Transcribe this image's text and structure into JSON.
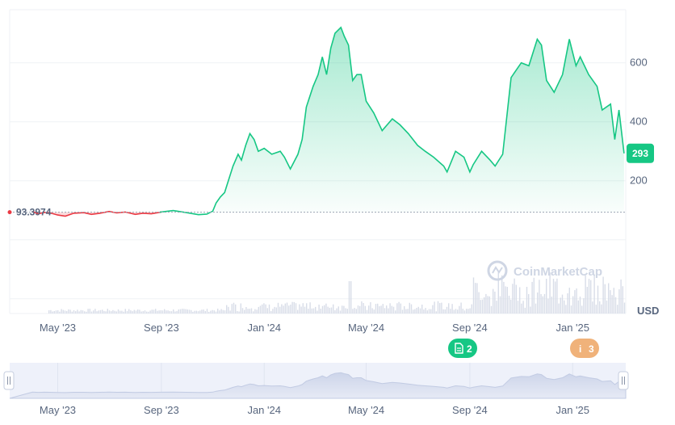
{
  "chart_data": {
    "type": "area",
    "currency_label": "USD",
    "baseline_value": 93.3974,
    "baseline_label": "93.3974",
    "current_price_label": "293",
    "y_ticks": [
      "200",
      "400",
      "600"
    ],
    "y_tick_values": [
      200,
      400,
      600
    ],
    "ylim": [
      -250,
      780
    ],
    "x_tick_labels": [
      "May '23",
      "Sep '23",
      "Jan '24",
      "May '24",
      "Sep '24",
      "Jan '25"
    ],
    "x_tick_dates": [
      "2023-05-01",
      "2023-09-01",
      "2024-01-01",
      "2024-05-01",
      "2024-09-01",
      "2025-01-01"
    ],
    "x_range": [
      "2023-03-05",
      "2025-03-05"
    ],
    "series": [
      {
        "x": [
          "2023-04-01",
          "2023-04-08",
          "2023-04-15",
          "2023-04-22",
          "2023-05-01",
          "2023-05-10",
          "2023-05-20",
          "2023-06-01",
          "2023-06-10",
          "2023-06-20",
          "2023-07-01",
          "2023-07-10",
          "2023-07-20",
          "2023-08-01",
          "2023-08-10",
          "2023-08-20",
          "2023-09-01",
          "2023-09-15",
          "2023-10-01",
          "2023-10-15",
          "2023-10-25",
          "2023-11-01",
          "2023-11-05",
          "2023-11-10",
          "2023-11-15",
          "2023-11-20",
          "2023-11-25",
          "2023-12-01",
          "2023-12-05",
          "2023-12-10",
          "2023-12-15",
          "2023-12-20",
          "2023-12-25",
          "2024-01-01",
          "2024-01-10",
          "2024-01-20",
          "2024-01-25",
          "2024-02-01",
          "2024-02-10",
          "2024-02-15",
          "2024-02-20",
          "2024-02-28",
          "2024-03-05",
          "2024-03-10",
          "2024-03-15",
          "2024-03-20",
          "2024-03-25",
          "2024-04-01",
          "2024-04-05",
          "2024-04-10",
          "2024-04-15",
          "2024-04-20",
          "2024-04-25",
          "2024-05-01",
          "2024-05-10",
          "2024-05-20",
          "2024-06-01",
          "2024-06-10",
          "2024-06-20",
          "2024-07-01",
          "2024-07-10",
          "2024-07-20",
          "2024-08-01",
          "2024-08-05",
          "2024-08-15",
          "2024-08-25",
          "2024-09-01",
          "2024-09-05",
          "2024-09-15",
          "2024-09-25",
          "2024-10-01",
          "2024-10-10",
          "2024-10-20",
          "2024-11-01",
          "2024-11-10",
          "2024-11-20",
          "2024-11-25",
          "2024-12-01",
          "2024-12-10",
          "2024-12-20",
          "2024-12-28",
          "2025-01-05",
          "2025-01-10",
          "2025-01-20",
          "2025-01-30",
          "2025-02-05",
          "2025-02-15",
          "2025-02-20",
          "2025-02-25",
          "2025-03-03"
        ],
        "values": [
          96,
          88,
          93,
          91,
          84,
          80,
          90,
          92,
          86,
          90,
          96,
          91,
          94,
          86,
          90,
          88,
          94,
          99,
          92,
          85,
          87,
          97,
          125,
          145,
          160,
          205,
          250,
          290,
          270,
          320,
          360,
          340,
          300,
          310,
          290,
          300,
          280,
          240,
          290,
          340,
          450,
          520,
          560,
          620,
          560,
          650,
          700,
          720,
          690,
          660,
          540,
          560,
          560,
          470,
          430,
          370,
          410,
          390,
          360,
          320,
          300,
          280,
          250,
          230,
          300,
          280,
          230,
          255,
          300,
          270,
          250,
          290,
          550,
          600,
          590,
          680,
          660,
          540,
          500,
          560,
          680,
          590,
          620,
          560,
          520,
          440,
          460,
          340,
          440,
          293
        ],
        "color": "#16c784"
      }
    ]
  },
  "badges": [
    {
      "icon": "document-icon",
      "count": "2",
      "color": "#16c784"
    },
    {
      "icon": "info-icon",
      "count": "3",
      "color": "#f0b27a"
    }
  ],
  "watermark": {
    "text": "CoinMarketCap"
  },
  "navigator": {
    "x_tick_labels": [
      "May '23",
      "Sep '23",
      "Jan '24",
      "May '24",
      "Sep '24",
      "Jan '25"
    ]
  },
  "colors": {
    "up": "#16c784",
    "down": "#ea3943"
  }
}
